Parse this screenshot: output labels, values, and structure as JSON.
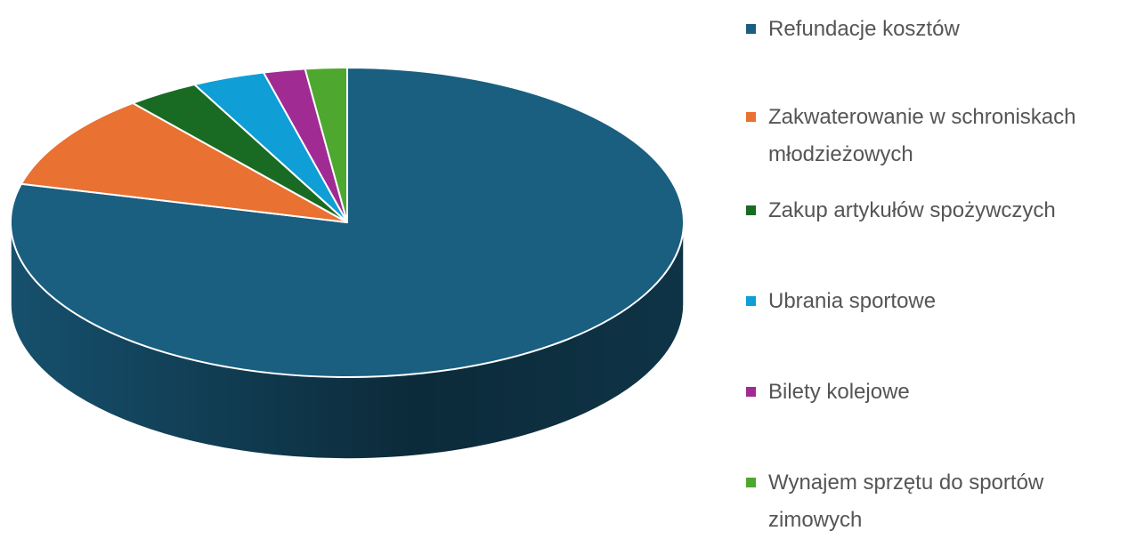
{
  "chart_data": {
    "type": "pie",
    "categories": [
      "Refundacje kosztów",
      "Zakwaterowanie w schroniskach młodzieżowych",
      "Zakup artykułów spożywczych",
      "Ubrania sportowe",
      "Bilety kolejowe",
      "Wynajem sprzętu do sportów zimowych"
    ],
    "values": [
      79,
      10,
      3.5,
      3.5,
      2,
      2
    ],
    "colors": [
      "#1a5e80",
      "#e97132",
      "#196b24",
      "#0f9ed5",
      "#a02b93",
      "#4ea72e"
    ],
    "legend": "right"
  }
}
